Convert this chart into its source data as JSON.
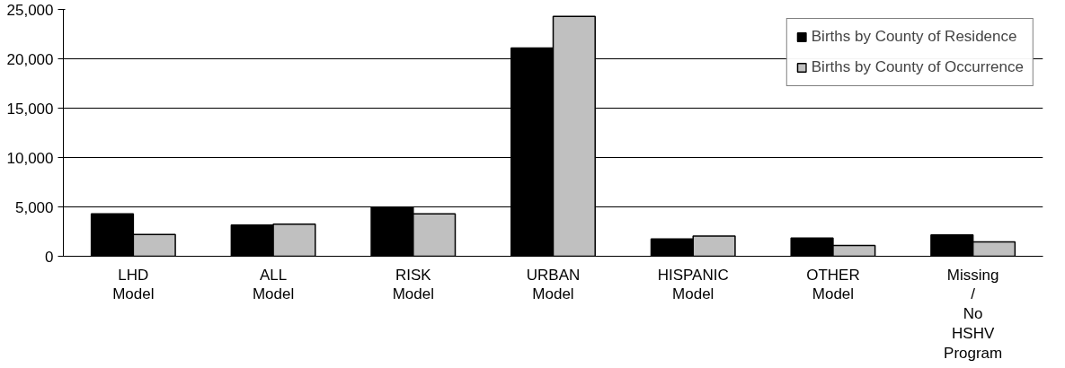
{
  "chart_data": {
    "type": "bar",
    "categories": [
      "LHD Model",
      "ALL Model",
      "RISK Model",
      "URBAN Model",
      "HISPANIC Model",
      "OTHER Model",
      "Missing / No HSHV Program"
    ],
    "series": [
      {
        "name": "Births by County of Residence",
        "color": "#000000",
        "values": [
          4300,
          3150,
          4950,
          21100,
          1750,
          1850,
          2150
        ]
      },
      {
        "name": "Births by County of Occurrence",
        "color": "#c0c0c0",
        "values": [
          2200,
          3250,
          4300,
          24300,
          2050,
          1100,
          1450
        ]
      }
    ],
    "ylim": [
      0,
      25000
    ],
    "yticks": [
      {
        "value": 0,
        "label": "0"
      },
      {
        "value": 5000,
        "label": "5,000"
      },
      {
        "value": 10000,
        "label": "10,000"
      },
      {
        "value": 15000,
        "label": "15,000"
      },
      {
        "value": 20000,
        "label": "20,000"
      },
      {
        "value": 25000,
        "label": "25,000"
      }
    ],
    "grid": "y",
    "legend": "top right"
  }
}
